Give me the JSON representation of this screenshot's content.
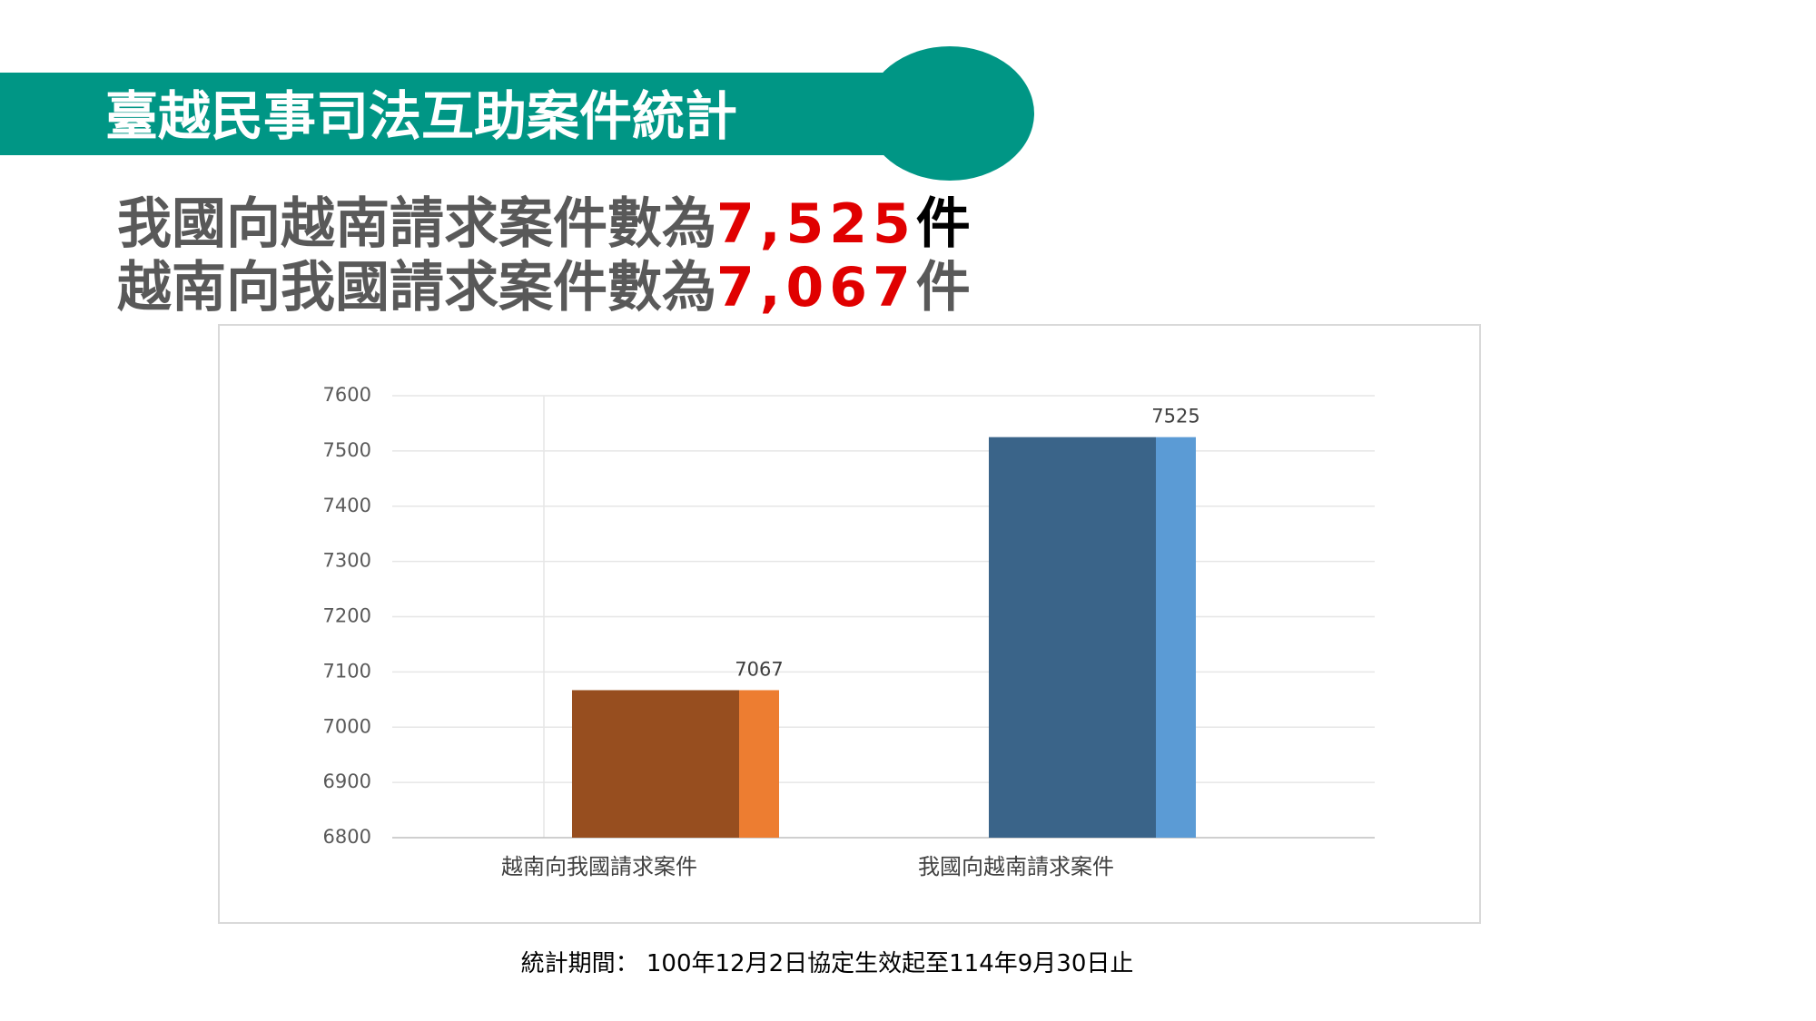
{
  "header": {
    "title": "臺越民事司法互助案件統計"
  },
  "headlines": [
    {
      "text": "我國向越南請求案件數為",
      "number": "7,525",
      "unit": "件"
    },
    {
      "text": "越南向我國請求案件數為",
      "number": "7,067",
      "unit": "件"
    }
  ],
  "chart_data": {
    "type": "bar",
    "categories": [
      "越南向我國請求案件",
      "我國向越南請求案件"
    ],
    "values": [
      7067,
      7525
    ],
    "colors": [
      "#974e1f",
      "#3a6489"
    ],
    "side_colors": [
      "#ed7d31",
      "#5b9bd5"
    ],
    "ylim": [
      6800,
      7600
    ],
    "yticks": [
      6800,
      6900,
      7000,
      7100,
      7200,
      7300,
      7400,
      7500,
      7600
    ],
    "grid": true
  },
  "footer": {
    "text": "統計期間： 100年12月2日協定生效起至114年9月30日止"
  }
}
